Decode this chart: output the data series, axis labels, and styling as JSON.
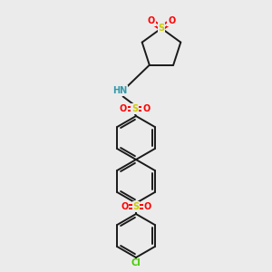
{
  "background_color": "#ebebeb",
  "figure_size": [
    3.0,
    3.0
  ],
  "dpi": 100,
  "atom_colors": {
    "S": "#cccc00",
    "O": "#ff0000",
    "N": "#3399aa",
    "Cl": "#44cc00",
    "C": "#1a1a1a"
  },
  "bond_color": "#1a1a1a",
  "bond_lw": 1.4,
  "font_size": 7.0
}
